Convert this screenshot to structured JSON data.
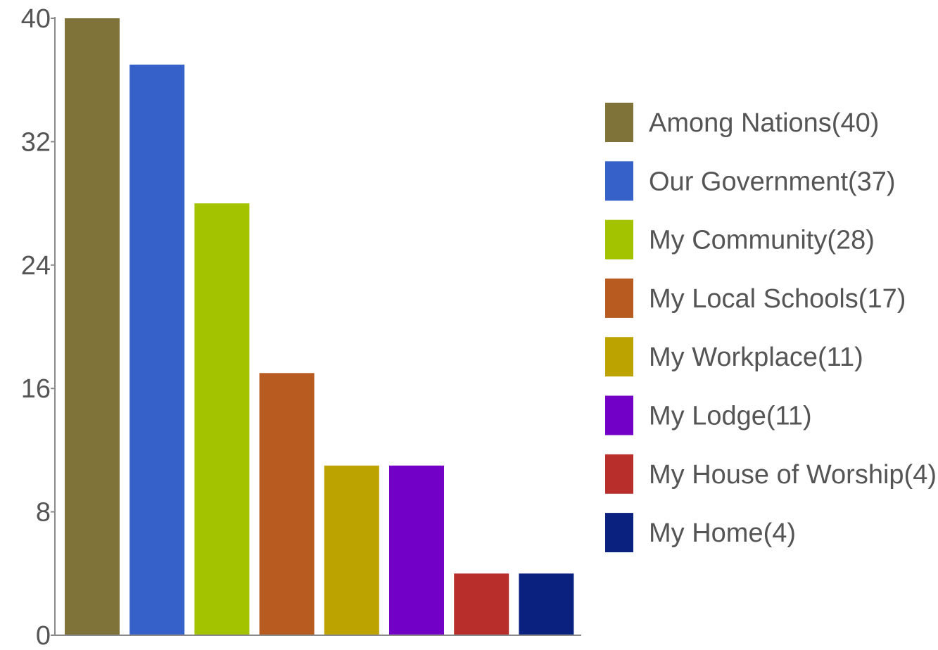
{
  "chart_data": {
    "type": "bar",
    "categories": [
      "Among Nations",
      "Our Government",
      "My Community",
      "My Local Schools",
      "My Workplace",
      "My Lodge",
      "My House of Worship",
      "My Home"
    ],
    "values": [
      40,
      37,
      28,
      17,
      11,
      11,
      4,
      4
    ],
    "colors": [
      "#7f733a",
      "#3661c8",
      "#a3c200",
      "#b85b20",
      "#bca300",
      "#7300c6",
      "#b72e2b",
      "#0b2180"
    ],
    "legend_labels": [
      "Among Nations(40)",
      "Our Government(37)",
      "My Community(28)",
      "My Local Schools(17)",
      "My Workplace(11)",
      "My Lodge(11)",
      "My House of Worship(4)",
      "My Home(4)"
    ],
    "ylim": [
      0,
      40
    ],
    "yticks": [
      "0",
      "8",
      "16",
      "24",
      "32",
      "40"
    ],
    "ytick_values": [
      0,
      8,
      16,
      24,
      32,
      40
    ],
    "legend_position": "right",
    "grid": false,
    "title": "",
    "xlabel": "",
    "ylabel": ""
  }
}
